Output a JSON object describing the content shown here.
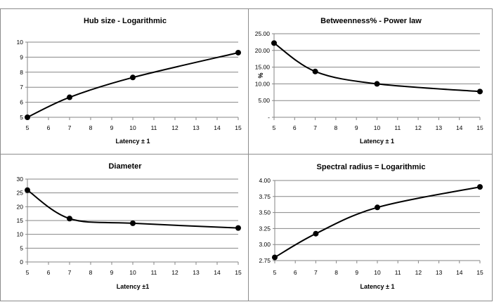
{
  "chart_data": [
    {
      "type": "line",
      "title": "Hub size - Logarithmic",
      "xlabel": "Latency ± 1",
      "ylabel": "",
      "x": [
        5,
        7,
        10,
        15
      ],
      "values": [
        5.0,
        6.33,
        7.65,
        9.3
      ],
      "xlim": [
        5,
        15
      ],
      "ylim": [
        5,
        10
      ],
      "xticks": [
        "5",
        "6",
        "7",
        "8",
        "9",
        "10",
        "11",
        "12",
        "13",
        "14",
        "15"
      ],
      "yticks": [
        "5",
        "6",
        "7",
        "8",
        "9",
        "10"
      ],
      "grid": "horizontal",
      "legend": "none"
    },
    {
      "type": "line",
      "title": "Betweenness% - Power law",
      "xlabel": "Latency ± 1",
      "ylabel": "%",
      "x": [
        5,
        7,
        10,
        15
      ],
      "values": [
        22.2,
        13.7,
        10.0,
        7.7
      ],
      "xlim": [
        5,
        15
      ],
      "ylim": [
        0,
        25
      ],
      "xticks": [
        "5",
        "6",
        "7",
        "8",
        "9",
        "10",
        "11",
        "12",
        "13",
        "14",
        "15"
      ],
      "yticks": [
        "-",
        "5.00",
        "10.00",
        "15.00",
        "20.00",
        "25.00"
      ],
      "grid": "horizontal",
      "legend": "none"
    },
    {
      "type": "line",
      "title": "Diameter",
      "xlabel": "Latency ±1",
      "ylabel": "",
      "x": [
        5,
        7,
        10,
        15
      ],
      "values": [
        26.0,
        15.7,
        14.0,
        12.3
      ],
      "xlim": [
        5,
        15
      ],
      "ylim": [
        0,
        30
      ],
      "xticks": [
        "5",
        "6",
        "7",
        "8",
        "9",
        "10",
        "11",
        "12",
        "13",
        "14",
        "15"
      ],
      "yticks": [
        "0",
        "5",
        "10",
        "15",
        "20",
        "25",
        "30"
      ],
      "grid": "horizontal",
      "legend": "none"
    },
    {
      "type": "line",
      "title": "Spectral radius = Logarithmic",
      "xlabel": "Latency ± 1",
      "ylabel": "",
      "x": [
        5,
        7,
        10,
        15
      ],
      "values": [
        2.8,
        3.17,
        3.58,
        3.9
      ],
      "xlim": [
        5,
        15
      ],
      "ylim": [
        2.75,
        4.0
      ],
      "xticks": [
        "5",
        "6",
        "7",
        "8",
        "9",
        "10",
        "11",
        "12",
        "13",
        "14",
        "15"
      ],
      "yticks": [
        "2.75",
        "3.00",
        "3.25",
        "3.50",
        "3.75",
        "4.00"
      ],
      "grid": "horizontal",
      "legend": "none"
    }
  ]
}
